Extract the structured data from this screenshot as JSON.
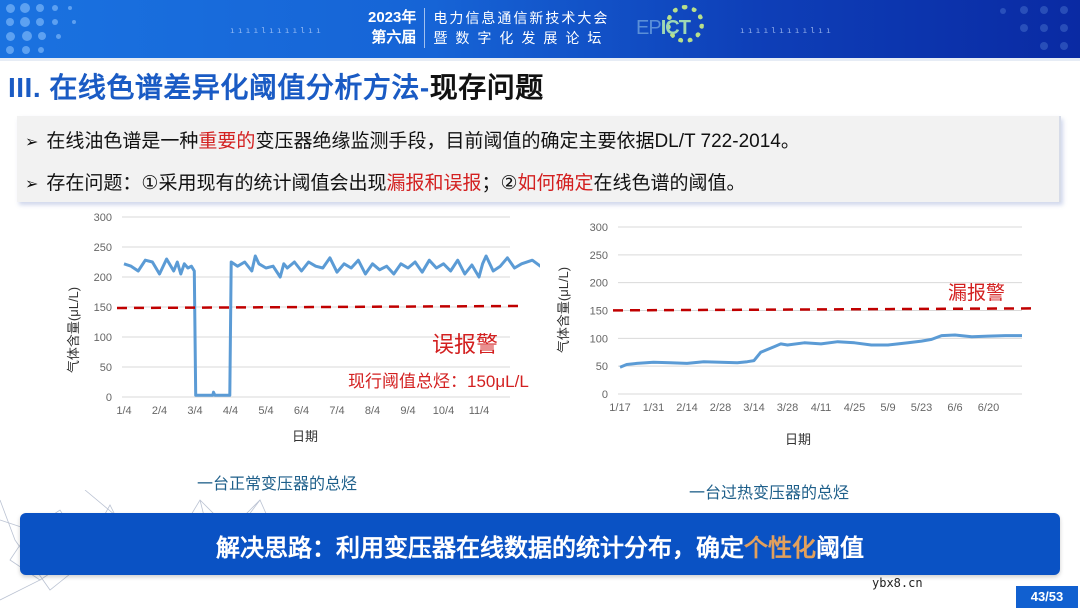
{
  "header": {
    "conference_year": "2023年",
    "conference_edition": "第六届",
    "conference_name_line1": "电力信息通信新技术大会",
    "conference_name_line2": "暨数字化发展论坛",
    "logo_prefix": "EP",
    "logo_suffix": "ICT"
  },
  "slide": {
    "title_blue": "III. 在线色谱差异化阈值分析方法-",
    "title_dark": "现存问题",
    "bullets": [
      {
        "arrow": "➢",
        "parts": [
          "在线油色谱是一种",
          "重要的",
          "变压器绝缘监测手段，目前阈值的确定主要依据DL/T 722-2014。"
        ]
      },
      {
        "arrow": "➢",
        "parts": [
          "存在问题：①采用现有的统计阈值会出现",
          "漏报和误报",
          "；②",
          "如何确定",
          "在线色谱的阈值。"
        ]
      }
    ],
    "solution_parts": [
      "解决思路：利用变压器在线数据的统计分布，确定",
      "个性化",
      "阈值"
    ],
    "watermark": "ybx8.cn",
    "page_number": "43/53"
  },
  "colors": {
    "accent_blue": "#1a5bc4",
    "banner_blue": "#0a52c4",
    "alert_red": "#d32020",
    "highlight_gold": "#e3a05c",
    "series_blue": "#5b9bd5",
    "threshold_red": "#c00000"
  },
  "chart_data": [
    {
      "type": "line",
      "title": "",
      "caption": "一台正常变压器的总烃",
      "xlabel": "日期",
      "ylabel": "气体含量(μL/L)",
      "ylim": [
        0,
        300
      ],
      "yticks": [
        0,
        50,
        100,
        150,
        200,
        250,
        300
      ],
      "categories": [
        "1/4",
        "2/4",
        "3/4",
        "4/4",
        "5/4",
        "6/4",
        "7/4",
        "8/4",
        "9/4",
        "10/4",
        "11/4"
      ],
      "grid": true,
      "series": [
        {
          "name": "总烃",
          "x_positions": [
            0,
            0.2,
            0.4,
            0.6,
            0.8,
            1.0,
            1.2,
            1.4,
            1.5,
            1.6,
            1.7,
            1.8,
            1.9,
            1.98,
            2.02,
            2.5,
            2.52,
            2.56,
            2.98,
            3.02,
            3.2,
            3.4,
            3.6,
            3.7,
            3.8,
            4.0,
            4.2,
            4.4,
            4.5,
            4.6,
            4.8,
            5.0,
            5.2,
            5.4,
            5.6,
            5.8,
            6.0,
            6.2,
            6.4,
            6.6,
            6.8,
            7.0,
            7.2,
            7.4,
            7.6,
            7.8,
            8.0,
            8.2,
            8.4,
            8.6,
            8.8,
            9.0,
            9.2,
            9.4,
            9.6,
            9.8,
            10.0,
            10.1,
            10.2,
            10.4,
            10.6,
            10.8,
            11.0,
            11.2,
            11.5,
            11.8
          ],
          "values": [
            222,
            218,
            210,
            228,
            225,
            205,
            230,
            210,
            225,
            205,
            222,
            215,
            218,
            210,
            3,
            3,
            8,
            3,
            3,
            225,
            218,
            225,
            210,
            235,
            222,
            215,
            218,
            200,
            222,
            215,
            225,
            210,
            225,
            218,
            215,
            232,
            208,
            222,
            215,
            228,
            205,
            222,
            212,
            218,
            205,
            222,
            215,
            225,
            208,
            228,
            215,
            222,
            210,
            228,
            205,
            220,
            200,
            222,
            235,
            210,
            218,
            232,
            215,
            222,
            228,
            215
          ]
        },
        {
          "name": "现行阈值",
          "style": "dashed",
          "constant": 150
        }
      ],
      "annotations": [
        {
          "text": "误报警",
          "color": "#d32020"
        },
        {
          "text": "现行阈值总烃：150μL/L",
          "color": "#d32020"
        }
      ]
    },
    {
      "type": "line",
      "title": "",
      "caption": "一台过热变压器的总烃",
      "xlabel": "日期",
      "ylabel": "气体含量(μL/L)",
      "ylim": [
        0,
        300
      ],
      "yticks": [
        0,
        50,
        100,
        150,
        200,
        250,
        300
      ],
      "categories": [
        "1/17",
        "1/31",
        "2/14",
        "2/28",
        "3/14",
        "3/28",
        "4/11",
        "4/25",
        "5/9",
        "5/23",
        "6/6",
        "6/20"
      ],
      "grid": true,
      "series": [
        {
          "name": "总烃",
          "x_positions": [
            0,
            0.2,
            0.5,
            1.0,
            1.5,
            2.0,
            2.5,
            3.0,
            3.5,
            3.8,
            4.0,
            4.2,
            4.4,
            4.6,
            4.8,
            5.0,
            5.5,
            6.0,
            6.5,
            7.0,
            7.5,
            8.0,
            8.3,
            8.6,
            9.0,
            9.3,
            9.6,
            10.0,
            10.5,
            11.0,
            11.5,
            12.0
          ],
          "values": [
            48,
            53,
            55,
            57,
            56,
            55,
            58,
            57,
            56,
            58,
            60,
            75,
            80,
            85,
            90,
            88,
            92,
            90,
            94,
            92,
            88,
            88,
            90,
            92,
            95,
            98,
            105,
            106,
            103,
            104,
            105,
            105
          ]
        },
        {
          "name": "现行阈值",
          "style": "dashed",
          "constant": 152
        }
      ],
      "annotations": [
        {
          "text": "漏报警",
          "color": "#d32020"
        }
      ]
    }
  ]
}
